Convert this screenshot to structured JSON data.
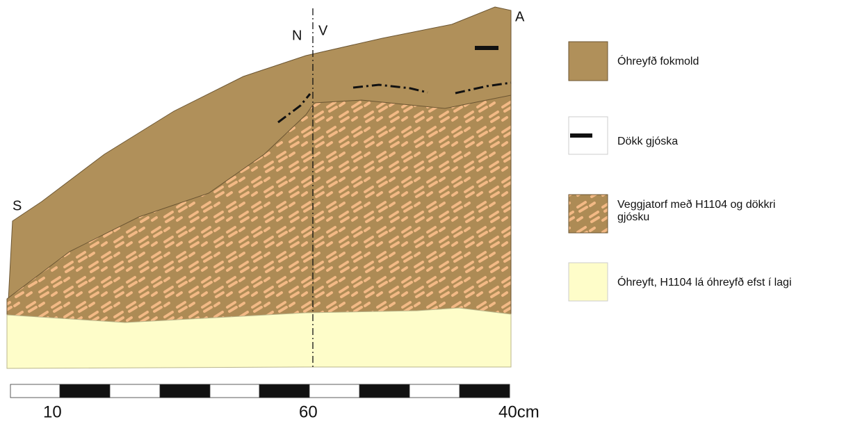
{
  "profile": {
    "corner_labels": [
      "S",
      "N",
      "V",
      "A"
    ]
  },
  "legend": [
    {
      "label": "Óhreyfð fokmold"
    },
    {
      "label": "Dökk gjóska"
    },
    {
      "label": "Veggjatorf með H1104 og dökkri",
      "label_line2": "gjósku"
    },
    {
      "label": "Óhreyft, H1104 lá óhreyfð efst í lagi"
    }
  ],
  "scale": {
    "labels": [
      "10",
      "60",
      "40cm"
    ]
  }
}
